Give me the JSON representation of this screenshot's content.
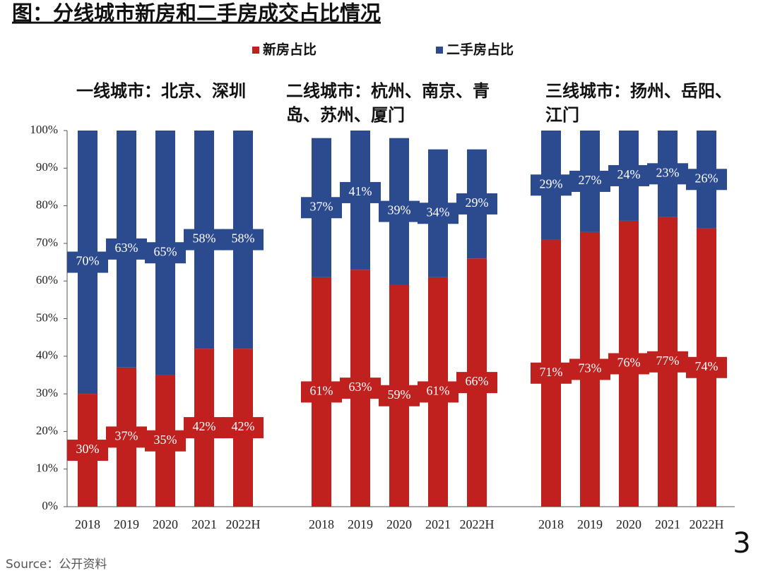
{
  "chart_data": {
    "type": "bar",
    "stacked": true,
    "title": "图：分线城市新房和二手房成交占比情况",
    "groups": [
      {
        "label": "一线城市：北京、深圳",
        "categories": [
          "2018",
          "2019",
          "2020",
          "2021",
          "2022H"
        ]
      },
      {
        "label": "二线城市：杭州、南京、青岛、苏州、厦门",
        "categories": [
          "2018",
          "2019",
          "2020",
          "2021",
          "2022H"
        ]
      },
      {
        "label": "三线城市：扬州、岳阳、江门",
        "categories": [
          "2018",
          "2019",
          "2020",
          "2021",
          "2022H"
        ]
      }
    ],
    "series": [
      {
        "name": "新房占比",
        "color": "#c0211f",
        "values": [
          30,
          37,
          35,
          42,
          42,
          61,
          63,
          59,
          61,
          66,
          71,
          73,
          76,
          77,
          74
        ],
        "value_labels": [
          "30%",
          "37%",
          "35%",
          "42%",
          "42%",
          "61%",
          "63%",
          "59%",
          "61%",
          "66%",
          "71%",
          "73%",
          "76%",
          "77%",
          "74%"
        ]
      },
      {
        "name": "二手房占比",
        "color": "#2c4b8e",
        "values": [
          70,
          63,
          65,
          58,
          58,
          37,
          41,
          39,
          34,
          29,
          29,
          27,
          24,
          23,
          26
        ],
        "value_labels": [
          "70%",
          "63%",
          "65%",
          "58%",
          "58%",
          "37%",
          "41%",
          "39%",
          "34%",
          "29%",
          "29%",
          "27%",
          "24%",
          "23%",
          "26%"
        ]
      }
    ],
    "ylim": [
      0,
      100
    ],
    "yticks": [
      {
        "value": 0,
        "label": "0%"
      },
      {
        "value": 10,
        "label": "10%"
      },
      {
        "value": 20,
        "label": "20%"
      },
      {
        "value": 30,
        "label": "30%"
      },
      {
        "value": 40,
        "label": "40%"
      },
      {
        "value": 50,
        "label": "50%"
      },
      {
        "value": 60,
        "label": "60%"
      },
      {
        "value": 70,
        "label": "70%"
      },
      {
        "value": 80,
        "label": "80%"
      },
      {
        "value": 90,
        "label": "90%"
      },
      {
        "value": 100,
        "label": "100%"
      }
    ]
  },
  "source": "Source：公开资料",
  "page_number": "3"
}
